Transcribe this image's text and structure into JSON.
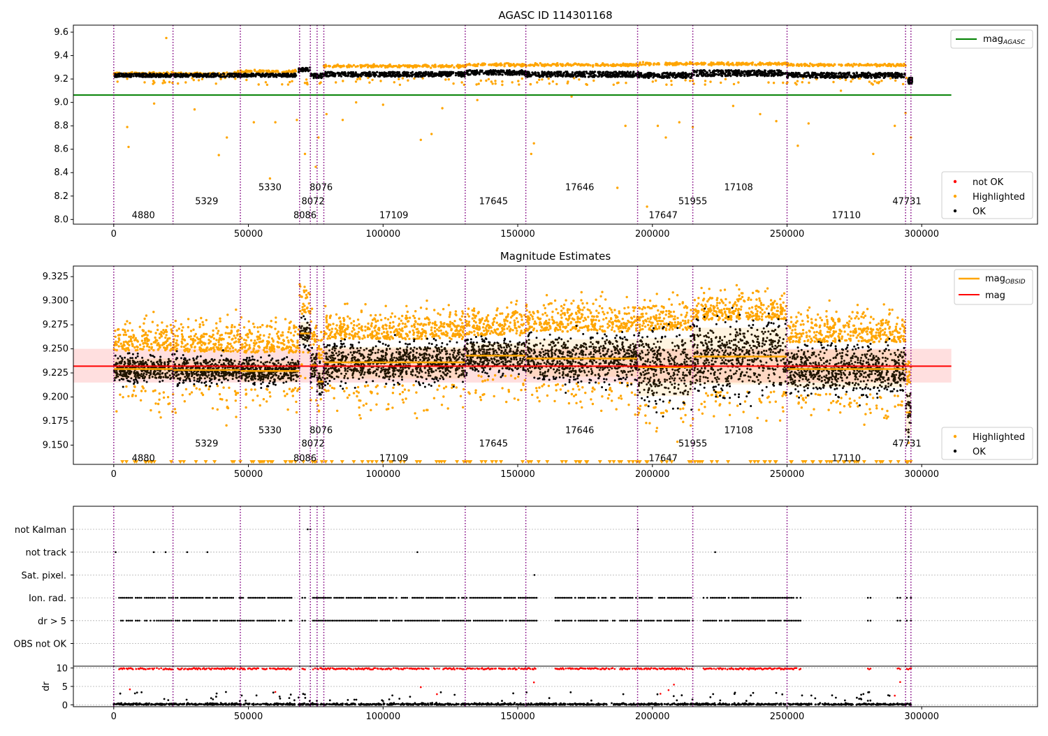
{
  "chart_data": [
    {
      "type": "scatter",
      "title": "AGASC ID 114301168",
      "xlabel": "",
      "ylabel": "",
      "xlim": [
        -15000,
        343000
      ],
      "ylim": [
        7.96,
        9.66
      ],
      "xticks": [
        0,
        50000,
        100000,
        150000,
        200000,
        250000,
        300000
      ],
      "yticks": [
        8.0,
        8.2,
        8.4,
        8.6,
        8.8,
        9.0,
        9.2,
        9.4,
        9.6
      ],
      "grid": false,
      "legend_upper": {
        "placement": "top-right",
        "entries": [
          "mag",
          "AGASC"
        ],
        "colors": [
          "#008000"
        ]
      },
      "legend_lower": {
        "placement": "bottom-right",
        "entries": [
          "not OK",
          "Highlighted",
          "OK"
        ],
        "colors": [
          "#ff0000",
          "#ffa500",
          "#000000"
        ]
      },
      "agasc_mag": 9.063,
      "agasc_x_range": [
        -15000,
        311000
      ],
      "ok_band": [
        {
          "x0": 0,
          "x1": 68000,
          "y": 9.232,
          "h": 0.03
        },
        {
          "x0": 68500,
          "x1": 73000,
          "y": 9.278,
          "h": 0.04
        },
        {
          "x0": 73000,
          "x1": 78000,
          "y": 9.228,
          "h": 0.04
        },
        {
          "x0": 78000,
          "x1": 131000,
          "y": 9.24,
          "h": 0.04
        },
        {
          "x0": 131000,
          "x1": 153000,
          "y": 9.255,
          "h": 0.04
        },
        {
          "x0": 153000,
          "x1": 195000,
          "y": 9.24,
          "h": 0.045
        },
        {
          "x0": 195000,
          "x1": 215000,
          "y": 9.232,
          "h": 0.045
        },
        {
          "x0": 215000,
          "x1": 250000,
          "y": 9.25,
          "h": 0.05
        },
        {
          "x0": 250000,
          "x1": 294000,
          "y": 9.232,
          "h": 0.045
        }
      ],
      "highlight_band": [
        {
          "x0": 0,
          "x1": 46000,
          "y": 9.245
        },
        {
          "x0": 46000,
          "x1": 68000,
          "y": 9.265
        },
        {
          "x0": 78000,
          "x1": 131000,
          "y": 9.31
        },
        {
          "x0": 131000,
          "x1": 195000,
          "y": 9.32
        },
        {
          "x0": 195000,
          "x1": 250000,
          "y": 9.33
        },
        {
          "x0": 250000,
          "x1": 294000,
          "y": 9.32
        }
      ],
      "highlight_outliers": [
        [
          19500,
          9.55
        ],
        [
          5000,
          8.79
        ],
        [
          5500,
          8.62
        ],
        [
          39000,
          8.55
        ],
        [
          42000,
          8.7
        ],
        [
          52000,
          8.83
        ],
        [
          58000,
          8.35
        ],
        [
          68000,
          8.85
        ],
        [
          71000,
          8.56
        ],
        [
          75000,
          8.45
        ],
        [
          76000,
          8.7
        ],
        [
          79000,
          8.9
        ],
        [
          85000,
          8.85
        ],
        [
          90000,
          9.0
        ],
        [
          100000,
          8.98
        ],
        [
          114000,
          8.68
        ],
        [
          118000,
          8.73
        ],
        [
          122000,
          8.95
        ],
        [
          155000,
          8.56
        ],
        [
          156000,
          8.65
        ],
        [
          187000,
          8.27
        ],
        [
          190000,
          8.8
        ],
        [
          198000,
          8.11
        ],
        [
          202000,
          8.8
        ],
        [
          205000,
          8.7
        ],
        [
          210000,
          8.83
        ],
        [
          215000,
          8.79
        ],
        [
          240000,
          8.9
        ],
        [
          246000,
          8.84
        ],
        [
          254000,
          8.63
        ],
        [
          258000,
          8.82
        ],
        [
          282000,
          8.56
        ],
        [
          290000,
          8.8
        ],
        [
          294000,
          8.91
        ],
        [
          296000,
          8.7
        ],
        [
          15000,
          8.99
        ],
        [
          30000,
          8.94
        ],
        [
          60000,
          8.83
        ],
        [
          135000,
          9.02
        ],
        [
          170000,
          9.05
        ],
        [
          230000,
          8.97
        ],
        [
          270000,
          9.1
        ]
      ],
      "obsid_boundaries": [
        0,
        22000,
        47000,
        69000,
        73000,
        75500,
        78000,
        130500,
        153000,
        194500,
        215000,
        250000,
        294000,
        296000
      ],
      "obsid_labels": [
        {
          "text": "4880",
          "x": 11000,
          "row": 0
        },
        {
          "text": "5329",
          "x": 34500,
          "row": 1
        },
        {
          "text": "5330",
          "x": 58000,
          "row": 2
        },
        {
          "text": "8086",
          "x": 71000,
          "row": 0
        },
        {
          "text": "8072",
          "x": 74000,
          "row": 1
        },
        {
          "text": "8076",
          "x": 77000,
          "row": 2
        },
        {
          "text": "17109",
          "x": 104000,
          "row": 0
        },
        {
          "text": "17645",
          "x": 141000,
          "row": 1
        },
        {
          "text": "17646",
          "x": 173000,
          "row": 2
        },
        {
          "text": "17647",
          "x": 204000,
          "row": 0
        },
        {
          "text": "51955",
          "x": 215000,
          "row": 1
        },
        {
          "text": "17108",
          "x": 232000,
          "row": 2
        },
        {
          "text": "17110",
          "x": 272000,
          "row": 0
        },
        {
          "text": "47731",
          "x": 294500,
          "row": 1
        }
      ]
    },
    {
      "type": "scatter",
      "title": "Magnitude Estimates",
      "xlabel": "",
      "ylabel": "",
      "xlim": [
        -15000,
        343000
      ],
      "ylim": [
        9.13,
        9.336
      ],
      "xticks": [
        0,
        50000,
        100000,
        150000,
        200000,
        250000,
        300000
      ],
      "yticks": [
        9.15,
        9.175,
        9.2,
        9.225,
        9.25,
        9.275,
        9.3,
        9.325
      ],
      "ytick_labels": [
        "9.150",
        "9.175",
        "9.200",
        "9.225",
        "9.250",
        "9.275",
        "9.300",
        "9.325"
      ],
      "grid": false,
      "legend_upper": {
        "placement": "top-right",
        "entries": [
          "mag",
          "OBSID",
          "mag"
        ],
        "colors": [
          "#ffa500",
          "#ff0000"
        ]
      },
      "legend_lower": {
        "placement": "bottom-right",
        "entries": [
          "Highlighted",
          "OK"
        ],
        "colors": [
          "#ffa500",
          "#000000"
        ]
      },
      "mag_mean": 9.232,
      "mag_band": [
        9.215,
        9.25
      ],
      "mag_x_range": [
        -15000,
        311000
      ],
      "obsid_mags": [
        {
          "x0": 0,
          "x1": 22000,
          "mean": 9.229,
          "lo": 9.219,
          "hi": 9.24
        },
        {
          "x0": 22000,
          "x1": 47000,
          "mean": 9.228,
          "lo": 9.218,
          "hi": 9.239
        },
        {
          "x0": 47000,
          "x1": 69000,
          "mean": 9.227,
          "lo": 9.216,
          "hi": 9.238
        },
        {
          "x0": 69000,
          "x1": 73000,
          "mean": 9.266,
          "lo": 9.255,
          "hi": 9.278
        },
        {
          "x0": 73000,
          "x1": 75500,
          "mean": 9.233,
          "lo": 9.222,
          "hi": 9.245
        },
        {
          "x0": 75500,
          "x1": 78000,
          "mean": 9.216,
          "lo": 9.205,
          "hi": 9.228
        },
        {
          "x0": 78000,
          "x1": 130500,
          "mean": 9.236,
          "lo": 9.219,
          "hi": 9.252
        },
        {
          "x0": 130500,
          "x1": 153000,
          "mean": 9.243,
          "lo": 9.229,
          "hi": 9.256
        },
        {
          "x0": 153000,
          "x1": 194500,
          "mean": 9.24,
          "lo": 9.221,
          "hi": 9.26
        },
        {
          "x0": 194500,
          "x1": 215000,
          "mean": 9.231,
          "lo": 9.201,
          "hi": 9.261
        },
        {
          "x0": 215000,
          "x1": 250000,
          "mean": 9.242,
          "lo": 9.213,
          "hi": 9.272
        },
        {
          "x0": 250000,
          "x1": 294000,
          "mean": 9.229,
          "lo": 9.21,
          "hi": 9.249
        },
        {
          "x0": 294000,
          "x1": 296000,
          "mean": 9.184,
          "lo": 9.16,
          "hi": 9.205
        }
      ],
      "obsid_labels_y_rows": [
        9.137,
        9.152,
        9.166
      ]
    },
    {
      "type": "scatter",
      "title": "",
      "xlabel": "",
      "ylabel": "",
      "xlim": [
        -15000,
        343000
      ],
      "categories": [
        "not Kalman",
        "not track",
        "Sat. pixel.",
        "Ion. rad.",
        "dr > 5",
        "OBS not OK"
      ],
      "grid": true,
      "flag_segments": {
        "not Kalman": [
          [
            72000,
            73000
          ],
          [
            194500,
            194800
          ]
        ],
        "not track": [
          [
            500,
            900
          ],
          [
            14500,
            15200
          ],
          [
            19000,
            19500
          ],
          [
            27000,
            27500
          ],
          [
            34500,
            35000
          ],
          [
            112500,
            113000
          ],
          [
            223000,
            223600
          ]
        ],
        "Sat. pixel.": [
          [
            156000,
            156400
          ]
        ],
        "Ion. rad.": [
          [
            2000,
            15000
          ],
          [
            16000,
            22000
          ],
          [
            23000,
            45000
          ],
          [
            46000,
            66000
          ],
          [
            70000,
            71000
          ],
          [
            74000,
            130000
          ],
          [
            131000,
            157000
          ],
          [
            164000,
            186000
          ],
          [
            188000,
            215000
          ],
          [
            219000,
            255000
          ],
          [
            280000,
            281000
          ],
          [
            291000,
            292000
          ],
          [
            294500,
            296000
          ]
        ],
        "dr > 5": [
          [
            2000,
            15000
          ],
          [
            16000,
            22000
          ],
          [
            23000,
            45000
          ],
          [
            46000,
            66000
          ],
          [
            70000,
            71000
          ],
          [
            74000,
            130000
          ],
          [
            131000,
            157000
          ],
          [
            164000,
            186000
          ],
          [
            188000,
            215000
          ],
          [
            219000,
            255000
          ],
          [
            280000,
            281000
          ],
          [
            291000,
            292000
          ],
          [
            294500,
            296000
          ]
        ],
        "OBS not OK": []
      }
    },
    {
      "type": "scatter",
      "title": "",
      "xlabel": "",
      "ylabel": "dr",
      "xlim": [
        -15000,
        343000
      ],
      "ylim": [
        -0.5,
        10.5
      ],
      "yticks": [
        0,
        5,
        10
      ],
      "xticks": [
        0,
        50000,
        100000,
        150000,
        200000,
        250000,
        300000
      ],
      "grid": true,
      "capped_segments": [
        [
          2000,
          15000
        ],
        [
          16000,
          22000
        ],
        [
          23000,
          45000
        ],
        [
          46000,
          66000
        ],
        [
          70000,
          71000
        ],
        [
          74000,
          130000
        ],
        [
          131000,
          157000
        ],
        [
          164000,
          186000
        ],
        [
          188000,
          215000
        ],
        [
          219000,
          255000
        ],
        [
          280000,
          281000
        ],
        [
          291000,
          292000
        ],
        [
          294500,
          296000
        ]
      ],
      "red_outliers": [
        [
          156000,
          6.1
        ],
        [
          203000,
          3.0
        ],
        [
          206000,
          4.0
        ],
        [
          208000,
          5.5
        ],
        [
          292000,
          6.2
        ],
        [
          290000,
          2.5
        ],
        [
          60000,
          3.5
        ],
        [
          6000,
          4.2
        ],
        [
          120000,
          2.9
        ],
        [
          114000,
          4.8
        ]
      ]
    }
  ],
  "tick_labels_x": [
    "0",
    "50000",
    "100000",
    "150000",
    "200000",
    "250000",
    "300000"
  ],
  "colors": {
    "ok": "#000000",
    "highlighted": "#ffa500",
    "not_ok": "#ff0000",
    "agasc": "#008000",
    "mag": "#ff0000",
    "obsid_line": "#800080",
    "mag_band": "#ffc0c0"
  }
}
